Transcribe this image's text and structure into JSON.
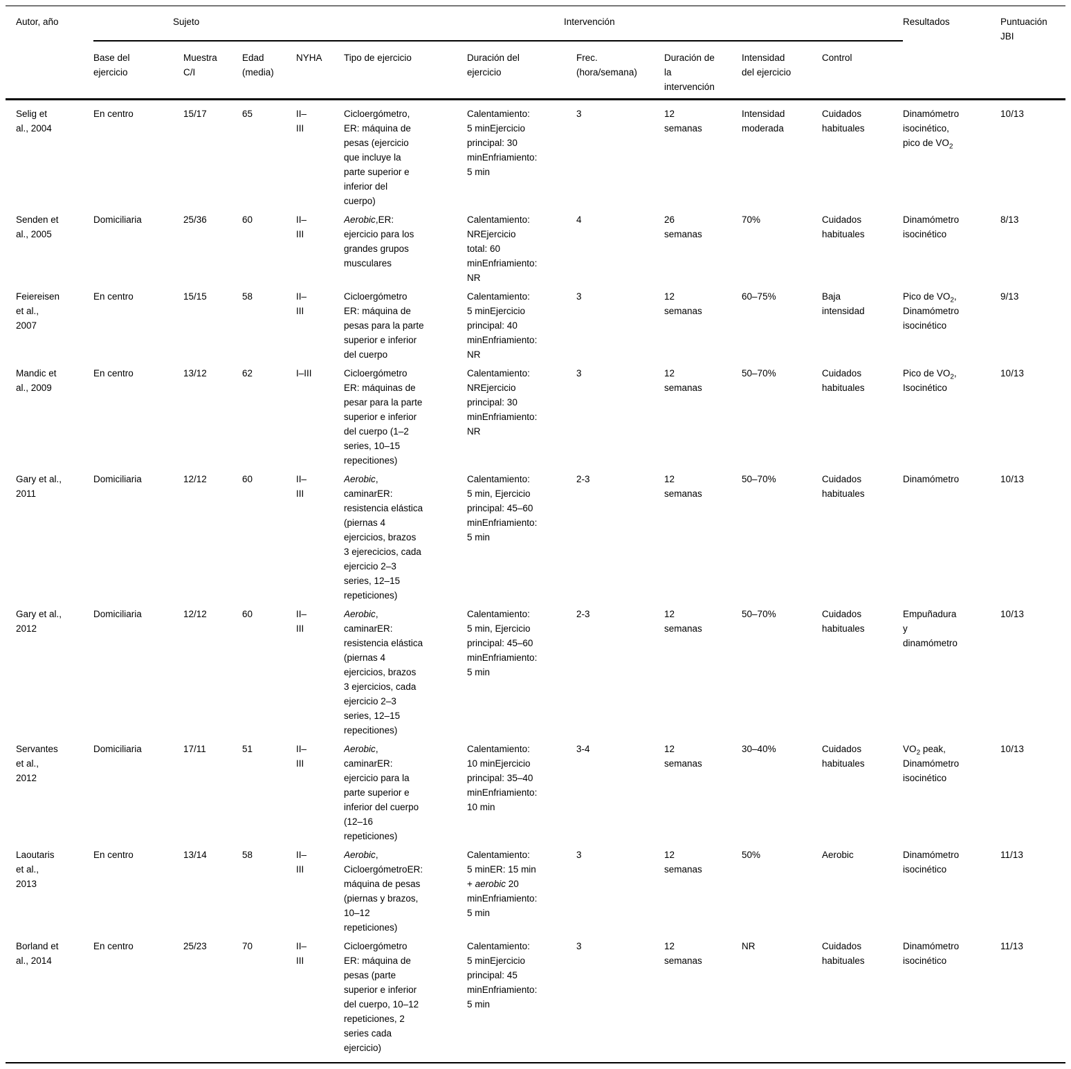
{
  "table": {
    "column_keys": [
      "autor",
      "base",
      "muestra",
      "edad",
      "nyha",
      "tipo",
      "duracion_ejercicio",
      "frec",
      "duracion_intervencion",
      "intensidad",
      "control",
      "resultados",
      "jbi"
    ],
    "groups": {
      "sujeto": "Sujeto",
      "intervencion": "Intervención"
    },
    "headers": {
      "autor": "Autor, año",
      "base": "Base del\nejercicio",
      "muestra": "Muestra\nC/I",
      "edad": "Edad\n(media)",
      "nyha": "NYHA",
      "tipo": "Tipo de ejercicio",
      "duracion_ejercicio": "Duración del\nejercicio",
      "frec": "Frec.\n(hora/semana)",
      "duracion_intervencion": "Duración de\nla\nintervención",
      "intensidad": "Intensidad\ndel ejercicio",
      "control": "Control",
      "resultados": "Resultados",
      "jbi": "Puntuación\nJBI"
    },
    "rows": [
      {
        "autor": "Selig et\nal., 2004",
        "base": "En centro",
        "muestra": "15/17",
        "edad": "65",
        "nyha": "II–\nIII",
        "tipo": "Cicloergómetro,\nER: máquina de\npesas (ejercicio\nque incluye la\nparte superior e\ninferior del\ncuerpo)",
        "duracion_ejercicio": "Calentamiento:\n5 minEjercicio\nprincipal: 30\nminEnfriamiento:\n5 min",
        "frec": "3",
        "duracion_intervencion": "12\nsemanas",
        "intensidad": "Intensidad\nmoderada",
        "control": "Cuidados\nhabituales",
        "resultados": "Dinamómetro\nisocinético,\npico de VO~2~",
        "jbi": "10/13"
      },
      {
        "autor": "Senden et\nal., 2005",
        "base": "Domiciliaria",
        "muestra": "25/36",
        "edad": "60",
        "nyha": "II–\nIII",
        "tipo": "*Aerobic*,ER:\nejercicio para los\ngrandes grupos\nmusculares",
        "duracion_ejercicio": "Calentamiento:\nNREjercicio\ntotal: 60\nminEnfriamiento:\nNR",
        "frec": "4",
        "duracion_intervencion": "26\nsemanas",
        "intensidad": "70%",
        "control": "Cuidados\nhabituales",
        "resultados": "Dinamómetro\nisocinético",
        "jbi": "8/13"
      },
      {
        "autor": "Feiereisen\net al.,\n2007",
        "base": "En centro",
        "muestra": "15/15",
        "edad": "58",
        "nyha": "II–\nIII",
        "tipo": "Cicloergómetro\nER: máquina de\npesas para la parte\nsuperior e inferior\ndel cuerpo",
        "duracion_ejercicio": "Calentamiento:\n5 minEjercicio\nprincipal: 40\nminEnfriamiento:\nNR",
        "frec": "3",
        "duracion_intervencion": "12\nsemanas",
        "intensidad": "60–75%",
        "control": "Baja\nintensidad",
        "resultados": "Pico de VO~2~,\nDinamómetro\nisocinético",
        "jbi": "9/13"
      },
      {
        "autor": "Mandic et\nal., 2009",
        "base": "En centro",
        "muestra": "13/12",
        "edad": "62",
        "nyha": "I–III",
        "tipo": "Cicloergómetro\nER: máquinas de\npesar para la parte\nsuperior e inferior\ndel cuerpo (1–2\nseries, 10–15\nrepecitiones)",
        "duracion_ejercicio": "Calentamiento:\nNREjercicio\nprincipal: 30\nminEnfriamiento:\nNR",
        "frec": "3",
        "duracion_intervencion": "12\nsemanas",
        "intensidad": "50–70%",
        "control": "Cuidados\nhabituales",
        "resultados": "Pico de VO~2~,\nIsocinético",
        "jbi": "10/13"
      },
      {
        "autor": "Gary et al.,\n2011",
        "base": "Domiciliaria",
        "muestra": "12/12",
        "edad": "60",
        "nyha": "II–\nIII",
        "tipo": "*Aerobic*,\ncaminarER:\nresistencia elástica\n(piernas 4\nejercicios, brazos\n3 ejerecicios, cada\nejercicio 2–3\nseries, 12–15\nrepeticiones)",
        "duracion_ejercicio": "Calentamiento:\n5 min, Ejercicio\nprincipal: 45–60\nminEnfriamiento:\n5 min",
        "frec": "2-3",
        "duracion_intervencion": "12\nsemanas",
        "intensidad": "50–70%",
        "control": "Cuidados\nhabituales",
        "resultados": "Dinamómetro",
        "jbi": "10/13"
      },
      {
        "autor": "Gary et al.,\n2012",
        "base": "Domiciliaria",
        "muestra": "12/12",
        "edad": "60",
        "nyha": "II–\nIII",
        "tipo": "*Aerobic*,\ncaminarER:\nresistencia elástica\n(piernas 4\nejercicios, brazos\n3 ejercicios, cada\nejercicio 2–3\nseries, 12–15\nrepecitiones)",
        "duracion_ejercicio": "Calentamiento:\n5 min, Ejercicio\nprincipal: 45–60\nminEnfriamiento:\n5 min",
        "frec": "2-3",
        "duracion_intervencion": "12\nsemanas",
        "intensidad": "50–70%",
        "control": "Cuidados\nhabituales",
        "resultados": "Empuñadura\ny\ndinamómetro",
        "jbi": "10/13"
      },
      {
        "autor": "Servantes\net al.,\n2012",
        "base": "Domiciliaria",
        "muestra": "17/11",
        "edad": "51",
        "nyha": "II–\nIII",
        "tipo": "*Aerobic*,\ncaminarER:\nejercicio para la\nparte superior e\ninferior del cuerpo\n(12–16\nrepeticiones)",
        "duracion_ejercicio": "Calentamiento:\n10 minEjercicio\nprincipal: 35–40\nminEnfriamiento:\n10 min",
        "frec": "3-4",
        "duracion_intervencion": "12\nsemanas",
        "intensidad": "30–40%",
        "control": "Cuidados\nhabituales",
        "resultados": "VO~2~ peak,\nDinamómetro\nisocinético",
        "jbi": "10/13"
      },
      {
        "autor": "Laoutaris\net al.,\n2013",
        "base": "En centro",
        "muestra": "13/14",
        "edad": "58",
        "nyha": "II–\nIII",
        "tipo": "*Aerobic*,\nCicloergómetroER:\nmáquina de pesas\n(piernas y brazos,\n10–12\nrepeticiones)",
        "duracion_ejercicio": "Calentamiento:\n5 minER: 15 min\n+ *aerobic* 20\nminEnfriamiento:\n5 min",
        "frec": "3",
        "duracion_intervencion": "12\nsemanas",
        "intensidad": "50%",
        "control": "Aerobic",
        "resultados": "Dinamómetro\nisocinético",
        "jbi": "11/13"
      },
      {
        "autor": "Borland et\nal., 2014",
        "base": "En centro",
        "muestra": "25/23",
        "edad": "70",
        "nyha": "II–\nIII",
        "tipo": "Cicloergómetro\nER: máquina de\npesas (parte\nsuperior e inferior\ndel cuerpo, 10–12\nrepeticiones, 2\nseries cada\nejercicio)",
        "duracion_ejercicio": "Calentamiento:\n5 minEjercicio\nprincipal: 45\nminEnfriamiento:\n5 min",
        "frec": "3",
        "duracion_intervencion": "12\nsemanas",
        "intensidad": "NR",
        "control": "Cuidados\nhabituales",
        "resultados": "Dinamómetro\nisocinético",
        "jbi": "11/13"
      }
    ]
  }
}
